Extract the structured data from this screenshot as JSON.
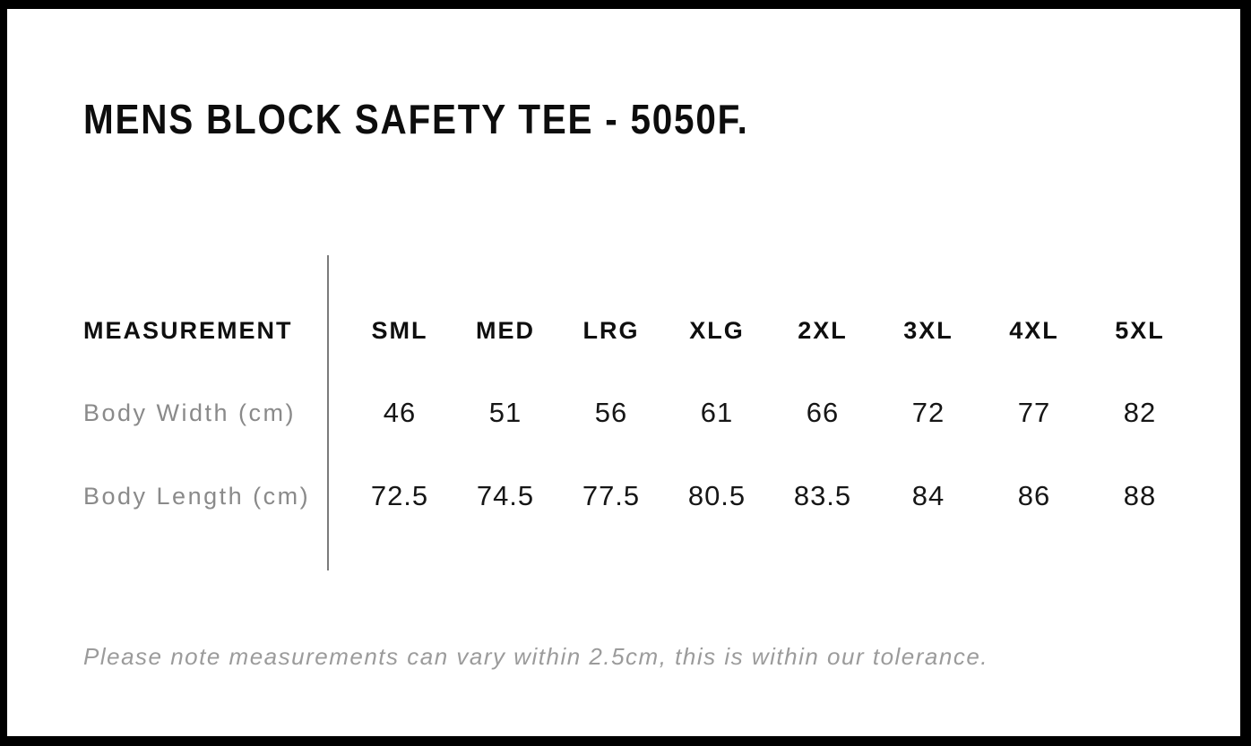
{
  "page": {
    "title": "MENS BLOCK SAFETY TEE - 5050F."
  },
  "size_chart": {
    "measurement_header": "MEASUREMENT",
    "columns": [
      "SML",
      "MED",
      "LRG",
      "XLG",
      "2XL",
      "3XL",
      "4XL",
      "5XL"
    ],
    "rows": [
      {
        "label": "Body Width (cm)",
        "values": [
          "46",
          "51",
          "56",
          "61",
          "66",
          "72",
          "77",
          "82"
        ]
      },
      {
        "label": "Body Length (cm)",
        "values": [
          "72.5",
          "74.5",
          "77.5",
          "80.5",
          "83.5",
          "84",
          "86",
          "88"
        ]
      }
    ]
  },
  "note": "Please note measurements can vary within 2.5cm, this is within our tolerance.",
  "colors": {
    "background": "#ffffff",
    "frame": "#000000",
    "text_primary": "#0d0d0d",
    "text_values": "#161616",
    "text_muted_labels": "#8a8a8a",
    "text_note": "#9b9b9b",
    "divider_line": "#7b7b7b"
  }
}
